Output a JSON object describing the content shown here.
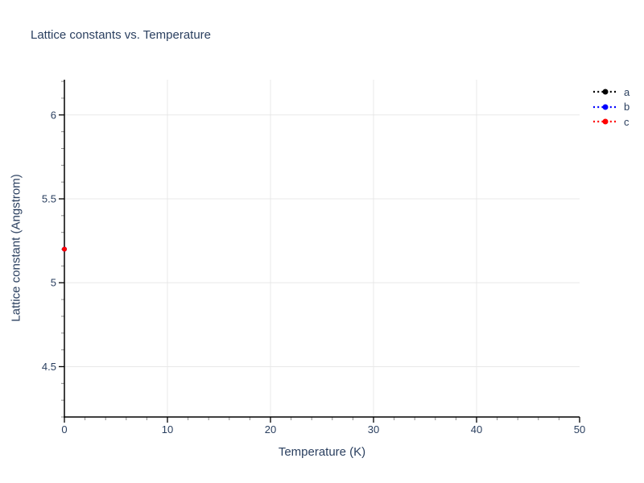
{
  "chart_data": {
    "type": "scatter",
    "title": "Lattice constants vs. Temperature",
    "xlabel": "Temperature (K)",
    "ylabel": "Lattice constant (Angstrom)",
    "xlim": [
      0,
      50
    ],
    "ylim": [
      4.2,
      6.21
    ],
    "x_tick_values": [
      0,
      10,
      20,
      30,
      40,
      50
    ],
    "x_tick_labels": [
      "0",
      "10",
      "20",
      "30",
      "40",
      "50"
    ],
    "y_tick_values": [
      4.5,
      5,
      5.5,
      6
    ],
    "y_tick_labels": [
      "4.5",
      "5",
      "5.5",
      "6"
    ],
    "x_minor_step": 2,
    "y_minor_step": 0.1,
    "grid": true,
    "legend": {
      "position": "outside-top-right",
      "entries": [
        "a",
        "b",
        "c"
      ]
    },
    "series": [
      {
        "name": "a",
        "color": "#000000",
        "line_style": "dashed",
        "marker": "circle",
        "x": [
          0
        ],
        "y": [
          5.2
        ]
      },
      {
        "name": "b",
        "color": "#0000ff",
        "line_style": "dashed",
        "marker": "circle",
        "x": [
          0
        ],
        "y": [
          5.2
        ]
      },
      {
        "name": "c",
        "color": "#ff0000",
        "line_style": "dashed",
        "marker": "circle",
        "x": [
          0
        ],
        "y": [
          5.2
        ]
      }
    ]
  },
  "style": {
    "background": "#ffffff",
    "text_color": "#2a3f5f",
    "axis_color": "#000000",
    "grid_color": "#e8e8e8",
    "minor_tick_color": "#888888"
  }
}
